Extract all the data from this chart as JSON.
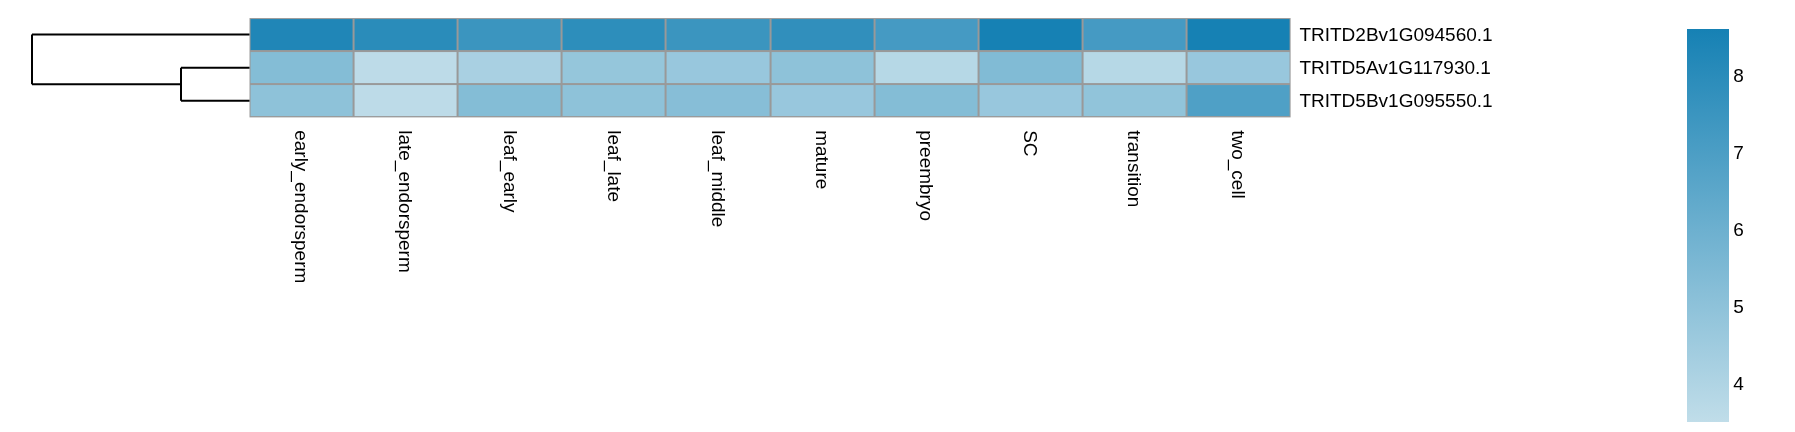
{
  "chart_data": {
    "type": "heatmap",
    "categories": [
      "early_endorsperm",
      "late_endorsperm",
      "leaf_early",
      "leaf_late",
      "leaf_middle",
      "mature",
      "preembryo",
      "SC",
      "transition",
      "two_cell"
    ],
    "y_categories": [
      "TRITD2Bv1G094560.1",
      "TRITD5Av1G117930.1",
      "TRITD5Bv1G095550.1"
    ],
    "cells": [
      [
        8.3,
        8.0,
        7.5,
        7.9,
        7.5,
        7.8,
        7.2,
        8.6,
        7.2,
        8.6
      ],
      [
        5.3,
        3.6,
        4.2,
        4.8,
        4.7,
        5.0,
        3.8,
        5.4,
        3.8,
        4.7
      ],
      [
        5.0,
        3.6,
        5.3,
        5.0,
        5.2,
        4.7,
        5.3,
        4.7,
        4.9,
        6.9
      ]
    ],
    "clim": [
      3.5,
      8.6
    ],
    "cticks": [
      4,
      5,
      6,
      7,
      8
    ]
  }
}
